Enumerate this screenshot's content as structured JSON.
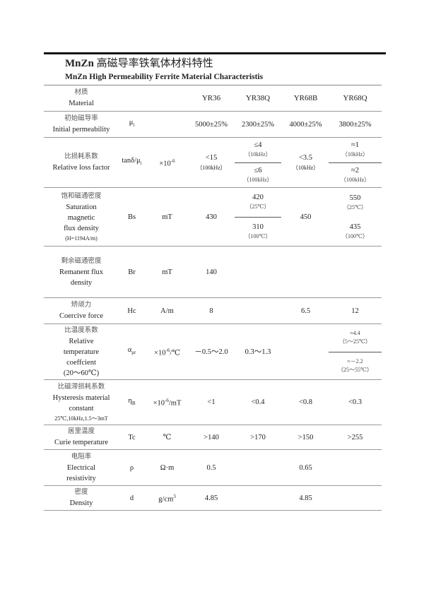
{
  "title_bold": "MnZn",
  "title_cn": "高磁导率铁氧体材料特性",
  "subtitle": "MnZn High Permeability Ferrite Material Characteristis",
  "columns": [
    "YR36",
    "YR38Q",
    "YR68B",
    "YR68Q"
  ],
  "rows": [
    {
      "cn": "材质",
      "en": [
        "Material"
      ],
      "symbol": null,
      "unit": null,
      "values": [
        "YR36",
        "YR38Q",
        "YR68B",
        "YR68Q"
      ],
      "header": true
    },
    {
      "cn": "初始磁导率",
      "en": [
        "Initial permeability"
      ],
      "symbol": {
        "base": "μ",
        "sub": "i"
      },
      "unit": null,
      "values": [
        "5000±25%",
        "2300±25%",
        "4000±25%",
        "3800±25%"
      ]
    },
    {
      "cn": "比损耗系数",
      "en": [
        "Relative loss factor"
      ],
      "symbol": {
        "base": "tanδ/μ",
        "sub": "i"
      },
      "unit": {
        "text": "×10",
        "sup": "-6",
        "after": ""
      },
      "values": [
        {
          "lines": [
            "<15",
            "（100kHz）"
          ]
        },
        {
          "top": [
            "≤4",
            "（10kHz）"
          ],
          "bottom": [
            "≤6",
            "（100kHz）"
          ]
        },
        {
          "lines": [
            "<3.5",
            "（10kHz）"
          ]
        },
        {
          "top": [
            "≈1",
            "（10kHz）"
          ],
          "bottom": [
            "≈2",
            "（100kHz）"
          ]
        }
      ]
    },
    {
      "cn": "饱和磁通密度",
      "en": [
        "Saturation",
        "magnetic",
        "flux density"
      ],
      "note": "(H=1194A/m)",
      "symbol": {
        "base": "Bs",
        "sub": ""
      },
      "unit": {
        "text": "mT",
        "sup": "",
        "after": ""
      },
      "values": [
        "430",
        {
          "top": [
            "420",
            "（25℃）"
          ],
          "bottom": [
            "310",
            "（100℃）"
          ]
        },
        "450",
        {
          "nosplit": true,
          "top": [
            "550",
            "（25℃）"
          ],
          "bottom": [
            "435",
            "（100℃）"
          ]
        }
      ]
    },
    {
      "cn": "剩余磁通密度",
      "en": [
        "Remanent flux",
        "density"
      ],
      "symbol": {
        "base": "Br",
        "sub": ""
      },
      "unit": {
        "text": "mT",
        "sup": "",
        "after": ""
      },
      "values": [
        "140",
        "",
        "",
        ""
      ]
    },
    {
      "cn": "矫顽力",
      "en": [
        "Coercive force"
      ],
      "symbol": {
        "base": "Hc",
        "sub": ""
      },
      "unit": {
        "text": "A/m",
        "sup": "",
        "after": ""
      },
      "values": [
        "8",
        "",
        "6.5",
        "12"
      ]
    },
    {
      "cn": "比温度系数",
      "en": [
        "Relative",
        "temperature",
        "coeffcient",
        "(20～60℃)"
      ],
      "symbol": {
        "base": "α",
        "sub": "μr"
      },
      "unit": {
        "text": "×10",
        "sup": "-6",
        "after": "/℃"
      },
      "values": [
        "－0.5～2.0",
        "0.3～1.3",
        "",
        {
          "top": [
            "≈4.4",
            "（5～25℃）"
          ],
          "bottom": [
            "≈－2.2",
            "（25～55℃）"
          ],
          "verysmall": true
        }
      ]
    },
    {
      "cn": "比磁滞损耗系数",
      "en": [
        "Hysteresis material",
        "constant"
      ],
      "note": "25℃,10kHz,1.5～3mT",
      "symbol": {
        "base": "η",
        "sub": "B"
      },
      "unit": {
        "text": "×10",
        "sup": "-6",
        "after": "/mT"
      },
      "values": [
        "<1",
        "<0.4",
        "<0.8",
        "<0.3"
      ]
    },
    {
      "cn": "居里温度",
      "en": [
        "Curie temperature"
      ],
      "symbol": {
        "base": "Tc",
        "sub": ""
      },
      "unit": {
        "text": "℃",
        "sup": "",
        "after": ""
      },
      "values": [
        ">140",
        ">170",
        ">150",
        ">255"
      ]
    },
    {
      "cn": "电阻率",
      "en": [
        "Electrical",
        "resistivity"
      ],
      "symbol": {
        "base": "ρ",
        "sub": ""
      },
      "unit": {
        "text": "Ω·m",
        "sup": "",
        "after": ""
      },
      "values": [
        "0.5",
        "",
        "0.65",
        ""
      ]
    },
    {
      "cn": "密度",
      "en": [
        "Density"
      ],
      "symbol": {
        "base": "d",
        "sub": ""
      },
      "unit": {
        "text": "g/cm",
        "sup": "3",
        "after": ""
      },
      "values": [
        "4.85",
        "",
        "4.85",
        ""
      ]
    }
  ]
}
